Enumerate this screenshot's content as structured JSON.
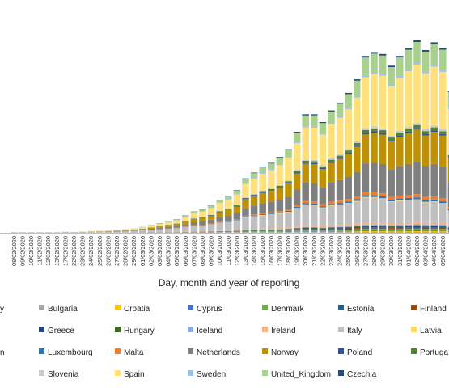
{
  "chart_data": {
    "type": "bar",
    "stacked": true,
    "title": "",
    "xlabel": "Day, month and year of reporting",
    "ylabel": "",
    "grid": false,
    "legend_position": "bottom",
    "categories": [
      "08/02/2020",
      "09/02/2020",
      "10/02/2020",
      "11/02/2020",
      "12/02/2020",
      "13/02/2020",
      "17/02/2020",
      "22/02/2020",
      "23/02/2020",
      "24/02/2020",
      "25/02/2020",
      "26/02/2020",
      "27/02/2020",
      "28/02/2020",
      "29/02/2020",
      "01/03/2020",
      "02/03/2020",
      "03/03/2020",
      "04/03/2020",
      "05/03/2020",
      "06/03/2020",
      "07/03/2020",
      "08/03/2020",
      "09/03/2020",
      "10/03/2020",
      "11/03/2020",
      "12/03/2020",
      "13/03/2020",
      "14/03/2020",
      "15/03/2020",
      "16/03/2020",
      "17/03/2020",
      "18/03/2020",
      "19/03/2020",
      "20/03/2020",
      "21/03/2020",
      "22/03/2020",
      "23/03/2020",
      "24/03/2020",
      "25/03/2020",
      "26/03/2020",
      "27/03/2020",
      "28/03/2020",
      "29/03/2020",
      "30/03/2020",
      "31/03/2020",
      "01/04/2020",
      "02/04/2020",
      "03/04/2020",
      "04/04/2020",
      "05/04/2020",
      "06/04/2020"
    ],
    "totals": [
      0.3,
      0.3,
      0.3,
      0.3,
      0.3,
      0.3,
      0.5,
      0.4,
      0.6,
      0.8,
      1.0,
      1.2,
      1.5,
      1.8,
      2.2,
      3,
      4,
      5,
      6,
      7,
      9,
      11,
      12,
      14,
      17,
      19,
      22,
      28,
      31,
      34,
      36,
      39,
      43,
      52,
      61,
      61,
      57,
      63,
      67,
      72,
      79,
      91,
      93,
      92,
      86,
      91,
      95,
      99,
      94,
      98,
      95,
      73
    ],
    "series": [
      {
        "name": "Bulgaria",
        "color": "#a5a5a5",
        "share": 0.005
      },
      {
        "name": "Croatia",
        "color": "#ffc000",
        "share": 0.005
      },
      {
        "name": "Cyprus",
        "color": "#4472c4",
        "share": 0.005
      },
      {
        "name": "Denmark",
        "color": "#70ad47",
        "share": 0.01
      },
      {
        "name": "Estonia",
        "color": "#255e91",
        "share": 0.004
      },
      {
        "name": "Finland",
        "color": "#9e480e",
        "share": 0.006
      },
      {
        "name": "Greece",
        "color": "#264478",
        "share": 0.006
      },
      {
        "name": "Hungary",
        "color": "#43682b",
        "share": 0.006
      },
      {
        "name": "Iceland",
        "color": "#8faadc",
        "share": 0.006
      },
      {
        "name": "Ireland",
        "color": "#f4b183",
        "share": 0.014
      },
      {
        "name": "Italy",
        "color": "#bfbfbf",
        "share": 0.2
      },
      {
        "name": "Latvia",
        "color": "#ffd966",
        "share": 0.004
      },
      {
        "name": "Luxembourg",
        "color": "#2e75b6",
        "share": 0.012
      },
      {
        "name": "Malta",
        "color": "#ed7d31",
        "share": 0.02
      },
      {
        "name": "Netherlands",
        "color": "#7f7f7f",
        "share": 0.15
      },
      {
        "name": "Norway",
        "color": "#bf9000",
        "share": 0.16
      },
      {
        "name": "Poland",
        "color": "#2f5597",
        "share": 0.01
      },
      {
        "name": "Portugal",
        "color": "#548235",
        "share": 0.018
      },
      {
        "name": "Slovenia",
        "color": "#c9c9c9",
        "share": 0.012
      },
      {
        "name": "Spain",
        "color": "#ffe07a",
        "share": 0.24
      },
      {
        "name": "Sweden",
        "color": "#9dc3e6",
        "share": 0.012
      },
      {
        "name": "United_Kingdom",
        "color": "#a9d18e",
        "share": 0.08
      },
      {
        "name": "Czechia",
        "color": "#1f4e79",
        "share": 0.01
      }
    ]
  },
  "legend_rows": [
    [
      {
        "label": "Bulgaria",
        "color": "#a5a5a5"
      },
      {
        "label": "Croatia",
        "color": "#ffc000"
      },
      {
        "label": "Cyprus",
        "color": "#4472c4"
      },
      {
        "label": "Denmark",
        "color": "#70ad47"
      },
      {
        "label": "Estonia",
        "color": "#255e91"
      },
      {
        "label": "Finland",
        "color": "#9e480e"
      }
    ],
    [
      {
        "label": "Greece",
        "color": "#264478"
      },
      {
        "label": "Hungary",
        "color": "#43682b"
      },
      {
        "label": "Iceland",
        "color": "#8faadc"
      },
      {
        "label": "Ireland",
        "color": "#f4b183"
      },
      {
        "label": "Italy",
        "color": "#bfbfbf"
      },
      {
        "label": "Latvia",
        "color": "#ffd966"
      }
    ],
    [
      {
        "label": "Luxembourg",
        "color": "#2e75b6"
      },
      {
        "label": "Malta",
        "color": "#ed7d31"
      },
      {
        "label": "Netherlands",
        "color": "#7f7f7f"
      },
      {
        "label": "Norway",
        "color": "#bf9000"
      },
      {
        "label": "Poland",
        "color": "#2f5597"
      },
      {
        "label": "Portuga",
        "color": "#548235"
      }
    ],
    [
      {
        "label": "Slovenia",
        "color": "#c9c9c9"
      },
      {
        "label": "Spain",
        "color": "#ffe07a"
      },
      {
        "label": "Sweden",
        "color": "#9dc3e6"
      },
      {
        "label": "United_Kingdom",
        "color": "#a9d18e"
      },
      {
        "label": "Czechia",
        "color": "#1f4e79"
      }
    ]
  ],
  "legend_cutoff_left": [
    "y",
    "",
    "n",
    ""
  ]
}
